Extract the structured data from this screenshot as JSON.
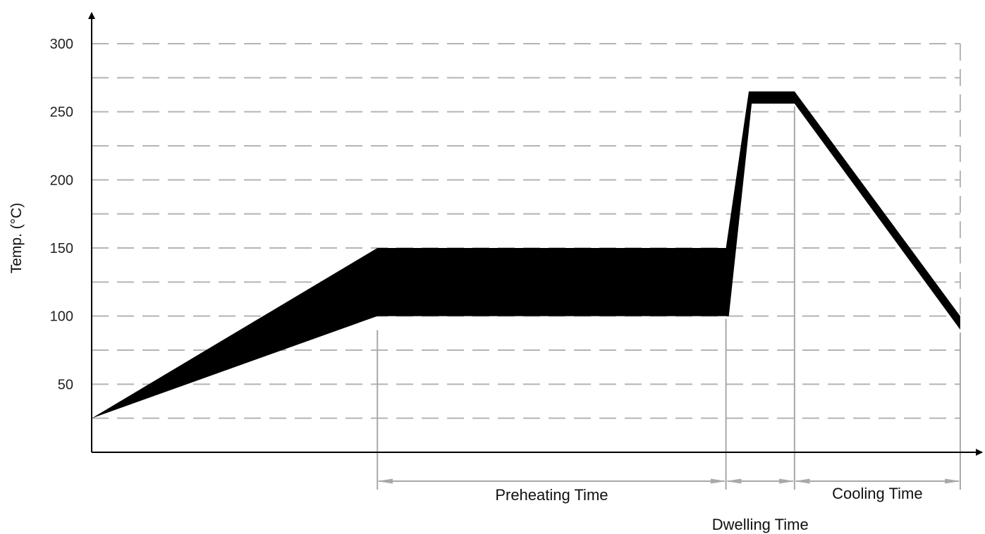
{
  "chart_data": {
    "type": "area",
    "title": "",
    "ylabel": "Temp. (°C)",
    "xlabel": "",
    "ylim": [
      0,
      300
    ],
    "yticks": [
      50,
      100,
      150,
      200,
      250,
      300
    ],
    "grid": true,
    "grid_step": 25,
    "band": {
      "upper": [
        [
          0,
          25
        ],
        [
          100,
          150
        ],
        [
          222,
          150
        ],
        [
          230,
          265
        ],
        [
          246,
          265
        ],
        [
          304,
          100
        ]
      ],
      "lower": [
        [
          0,
          25
        ],
        [
          100,
          100
        ],
        [
          223,
          100
        ],
        [
          231,
          256
        ],
        [
          246,
          256
        ],
        [
          304,
          90
        ]
      ]
    },
    "phases": [
      {
        "label": "Preheating Time",
        "start": 100,
        "end": 222
      },
      {
        "label": "Dwelling Time",
        "start": 222,
        "end": 246
      },
      {
        "label": "Cooling Time",
        "start": 246,
        "end": 304
      }
    ]
  },
  "colors": {
    "band": "#000000",
    "grid": "#b4b4b4",
    "guide": "#a8a8a8",
    "axis": "#000000"
  }
}
